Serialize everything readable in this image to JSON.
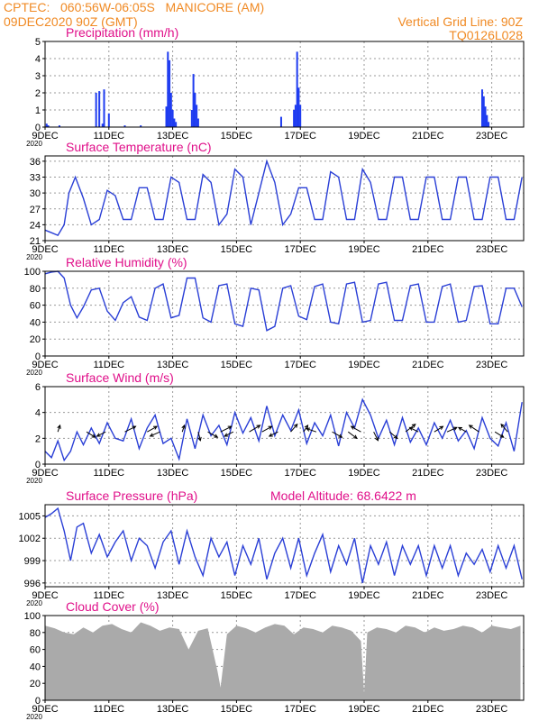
{
  "header": {
    "left1": "CPTEC:   060:56W-06:05S   MANICORE (AM)",
    "left2": "09DEC2020 90Z (GMT)",
    "right1": "Vertical Grid Line: 90Z",
    "right2": "TQ0126L028"
  },
  "x_axis": {
    "range": [
      9,
      24
    ],
    "tick_values": [
      9,
      11,
      13,
      15,
      17,
      19,
      21,
      23
    ],
    "tick_labels": [
      "9DEC",
      "11DEC",
      "13DEC",
      "15DEC",
      "17DEC",
      "19DEC",
      "21DEC",
      "23DEC"
    ],
    "year_label": "2020"
  },
  "colors": {
    "line": "#2a3fd6",
    "bar": "#1f3cf0",
    "cloud": "#aaaaaa",
    "title": "#e0108a",
    "header": "#f08a24"
  },
  "chart_data": [
    {
      "type": "bar",
      "title": "Precipitation (mm/h)",
      "ylim": [
        0,
        5
      ],
      "yticks": [
        0,
        1,
        2,
        3,
        4,
        5
      ],
      "x": [
        9.05,
        9.1,
        9.45,
        10.6,
        10.7,
        10.8,
        10.85,
        11.0,
        11.5,
        12.0,
        12.8,
        12.85,
        12.9,
        12.95,
        13.0,
        13.05,
        13.1,
        13.6,
        13.65,
        13.7,
        13.75,
        13.8,
        16.4,
        16.8,
        16.85,
        16.9,
        16.95,
        17.0,
        22.7,
        22.75,
        22.8,
        22.85,
        22.9
      ],
      "values": [
        0.2,
        0.1,
        0.1,
        2.0,
        2.1,
        0.2,
        2.2,
        0.8,
        0.1,
        0.1,
        1.2,
        4.4,
        3.9,
        2.0,
        1.0,
        0.5,
        0.3,
        1.0,
        3.1,
        2.0,
        1.3,
        0.5,
        0.6,
        1.0,
        1.3,
        4.4,
        2.3,
        1.3,
        2.2,
        1.8,
        1.2,
        0.7,
        0.3
      ]
    },
    {
      "type": "line",
      "title": "Surface Temperature (nC)",
      "ylim": [
        21,
        37
      ],
      "yticks": [
        21,
        24,
        27,
        30,
        33,
        36
      ],
      "x": [
        9.0,
        9.2,
        9.4,
        9.6,
        9.75,
        9.95,
        10.2,
        10.45,
        10.7,
        10.95,
        11.2,
        11.45,
        11.7,
        11.95,
        12.2,
        12.45,
        12.7,
        12.95,
        13.2,
        13.45,
        13.7,
        13.95,
        14.2,
        14.45,
        14.7,
        14.95,
        15.2,
        15.45,
        15.7,
        15.95,
        16.2,
        16.45,
        16.7,
        16.95,
        17.2,
        17.45,
        17.7,
        17.95,
        18.2,
        18.45,
        18.7,
        18.95,
        19.2,
        19.45,
        19.7,
        19.95,
        20.2,
        20.45,
        20.7,
        20.95,
        21.2,
        21.45,
        21.7,
        21.95,
        22.2,
        22.45,
        22.7,
        22.95,
        23.2,
        23.45,
        23.7,
        23.95
      ],
      "values": [
        23,
        22.5,
        22,
        24,
        30,
        33,
        29,
        24,
        25,
        30.5,
        29.5,
        25,
        25,
        31,
        31,
        25,
        25,
        33,
        32,
        25,
        25,
        33.5,
        32,
        24,
        26,
        34.5,
        33,
        24,
        30,
        36,
        32,
        24,
        26,
        31,
        31,
        25,
        25,
        34,
        33,
        25,
        25,
        34.5,
        32,
        25,
        25,
        33,
        33,
        25,
        25,
        33,
        33,
        25,
        25,
        33,
        33,
        25,
        25,
        33,
        33,
        25,
        25,
        33
      ]
    },
    {
      "type": "line",
      "title": "Relative Humidity (%)",
      "ylim": [
        0,
        100
      ],
      "yticks": [
        0,
        20,
        40,
        60,
        80,
        100
      ],
      "x": [
        9.0,
        9.2,
        9.4,
        9.6,
        9.8,
        10.0,
        10.2,
        10.45,
        10.7,
        10.95,
        11.2,
        11.45,
        11.7,
        11.95,
        12.2,
        12.45,
        12.7,
        12.95,
        13.2,
        13.45,
        13.7,
        13.95,
        14.2,
        14.45,
        14.7,
        14.95,
        15.2,
        15.45,
        15.7,
        15.95,
        16.2,
        16.45,
        16.7,
        16.95,
        17.2,
        17.45,
        17.7,
        17.95,
        18.2,
        18.45,
        18.7,
        18.95,
        19.2,
        19.45,
        19.7,
        19.95,
        20.2,
        20.45,
        20.7,
        20.95,
        21.2,
        21.45,
        21.7,
        21.95,
        22.2,
        22.45,
        22.7,
        22.95,
        23.2,
        23.45,
        23.7,
        23.95
      ],
      "values": [
        97,
        99,
        100,
        92,
        60,
        45,
        58,
        78,
        80,
        53,
        42,
        63,
        70,
        46,
        42,
        80,
        85,
        45,
        48,
        92,
        92,
        45,
        40,
        83,
        85,
        38,
        35,
        80,
        78,
        30,
        35,
        80,
        83,
        47,
        43,
        82,
        85,
        40,
        38,
        85,
        87,
        40,
        42,
        85,
        87,
        42,
        42,
        83,
        85,
        40,
        40,
        82,
        85,
        40,
        42,
        82,
        83,
        38,
        38,
        80,
        80,
        58
      ]
    },
    {
      "type": "line",
      "title": "Surface Wind (m/s)",
      "ylim": [
        0,
        6
      ],
      "yticks": [
        0,
        2,
        4,
        6
      ],
      "x": [
        9.0,
        9.2,
        9.4,
        9.6,
        9.8,
        10.0,
        10.2,
        10.45,
        10.7,
        10.95,
        11.2,
        11.45,
        11.7,
        11.95,
        12.2,
        12.45,
        12.7,
        12.95,
        13.2,
        13.45,
        13.7,
        13.95,
        14.2,
        14.45,
        14.7,
        14.95,
        15.2,
        15.45,
        15.7,
        15.95,
        16.2,
        16.45,
        16.7,
        16.95,
        17.2,
        17.45,
        17.7,
        17.95,
        18.2,
        18.45,
        18.7,
        18.95,
        19.2,
        19.45,
        19.7,
        19.95,
        20.2,
        20.45,
        20.7,
        20.95,
        21.2,
        21.45,
        21.7,
        21.95,
        22.2,
        22.45,
        22.7,
        22.95,
        23.2,
        23.45,
        23.7,
        23.95
      ],
      "values": [
        1,
        0.5,
        1.8,
        0.3,
        1,
        2.5,
        1.5,
        2.8,
        1.6,
        3.2,
        2,
        1.8,
        3.5,
        1.2,
        2.8,
        3.8,
        1.6,
        2,
        0.4,
        3.5,
        1.2,
        3.8,
        2.2,
        3,
        1.5,
        4,
        2.4,
        3.6,
        1.8,
        4.5,
        2.2,
        3.8,
        2.6,
        4.2,
        1.6,
        3.2,
        2.2,
        3.8,
        1.4,
        4,
        2.8,
        5,
        3.8,
        2,
        3.4,
        1.5,
        3.6,
        1.7,
        2.8,
        1.5,
        3.2,
        2,
        3.4,
        1.8,
        2.6,
        1.2,
        3.6,
        2,
        1.4,
        3.2,
        1,
        4.8
      ],
      "vectors": {
        "x": [
          9.4,
          10.3,
          10.9,
          11.5,
          12.2,
          12.6,
          13.3,
          13.8,
          14.1,
          14.5,
          14.9,
          15.4,
          15.8,
          16.3,
          16.7,
          17.1,
          17.5,
          18.0,
          18.5,
          18.9,
          19.3,
          19.8,
          20.3,
          20.7,
          21.2,
          21.6,
          22.2,
          22.6,
          23.1,
          23.5
        ],
        "u": [
          0.2,
          0.8,
          -0.8,
          1.0,
          0.9,
          -0.9,
          0.2,
          0.2,
          0.9,
          1.0,
          -0.8,
          1.0,
          0.9,
          -0.8,
          0.6,
          0.4,
          -0.9,
          0.9,
          0.8,
          -0.9,
          0.4,
          0.7,
          0.9,
          -0.8,
          0.8,
          0.9,
          -0.7,
          -0.9,
          0.8,
          -0.6
        ],
        "v": [
          0.6,
          -0.5,
          -0.4,
          0.5,
          0.5,
          -0.4,
          0.6,
          -0.8,
          -0.5,
          0.5,
          -0.4,
          0.6,
          0.5,
          -0.4,
          0.7,
          0.6,
          0.3,
          -0.5,
          -0.6,
          0.5,
          -0.8,
          -0.6,
          0.7,
          0.4,
          0.5,
          0.4,
          0.4,
          0.6,
          -0.5,
          0.7
        ]
      }
    },
    {
      "type": "line",
      "title": "Surface Pressure (hPa)",
      "annotation": "Model Altitude: 68.6422 m",
      "ylim": [
        995.5,
        1006.5
      ],
      "yticks": [
        996,
        999,
        1002,
        1005
      ],
      "x": [
        9.0,
        9.2,
        9.4,
        9.6,
        9.8,
        10.0,
        10.2,
        10.45,
        10.7,
        10.95,
        11.2,
        11.45,
        11.7,
        11.95,
        12.2,
        12.45,
        12.7,
        12.95,
        13.2,
        13.45,
        13.7,
        13.95,
        14.2,
        14.45,
        14.7,
        14.95,
        15.2,
        15.45,
        15.7,
        15.95,
        16.2,
        16.45,
        16.7,
        16.95,
        17.2,
        17.45,
        17.7,
        17.95,
        18.2,
        18.45,
        18.7,
        18.95,
        19.2,
        19.45,
        19.7,
        19.95,
        20.2,
        20.45,
        20.7,
        20.95,
        21.2,
        21.45,
        21.7,
        21.95,
        22.2,
        22.45,
        22.7,
        22.95,
        23.2,
        23.45,
        23.7,
        23.95
      ],
      "values": [
        1004.8,
        1005.3,
        1006,
        1003,
        999,
        1003.5,
        1004,
        1000,
        1002.5,
        999.5,
        1001.5,
        1003,
        999,
        1002,
        1001,
        998,
        1001.5,
        1003,
        998.5,
        1003,
        999.5,
        997,
        1002,
        999.5,
        1001.5,
        997,
        1001,
        998.5,
        1002,
        996.5,
        1000,
        1002,
        998,
        1002,
        997,
        1000,
        1002.5,
        997.5,
        1001,
        998.5,
        1002,
        996,
        1001,
        998.5,
        1001.5,
        997,
        1001,
        998.5,
        1001,
        997,
        1001,
        998,
        1001,
        997,
        1000,
        998.5,
        1000.5,
        997.5,
        1001,
        998,
        1001,
        996.5
      ]
    },
    {
      "type": "area",
      "title": "Cloud Cover (%)",
      "ylim": [
        0,
        100
      ],
      "yticks": [
        0,
        20,
        40,
        60,
        80,
        100
      ],
      "x": [
        9.0,
        9.3,
        9.6,
        9.9,
        10.2,
        10.5,
        10.8,
        11.1,
        11.4,
        11.7,
        12.0,
        12.3,
        12.6,
        12.9,
        13.2,
        13.5,
        13.8,
        14.1,
        14.4,
        14.5,
        14.7,
        15.0,
        15.3,
        15.6,
        15.9,
        16.2,
        16.5,
        16.8,
        17.1,
        17.4,
        17.7,
        18.0,
        18.3,
        18.6,
        18.9,
        19.0,
        19.1,
        19.4,
        19.7,
        20.0,
        20.3,
        20.6,
        20.9,
        21.2,
        21.5,
        21.8,
        22.1,
        22.4,
        22.7,
        23.0,
        23.3,
        23.6,
        23.9
      ],
      "values": [
        88,
        85,
        80,
        78,
        86,
        80,
        88,
        90,
        84,
        80,
        92,
        88,
        82,
        86,
        84,
        60,
        82,
        85,
        35,
        15,
        78,
        88,
        85,
        80,
        86,
        90,
        88,
        78,
        86,
        84,
        80,
        88,
        86,
        82,
        70,
        8,
        80,
        86,
        84,
        80,
        88,
        86,
        80,
        86,
        82,
        84,
        88,
        86,
        80,
        88,
        86,
        84,
        88
      ]
    }
  ]
}
